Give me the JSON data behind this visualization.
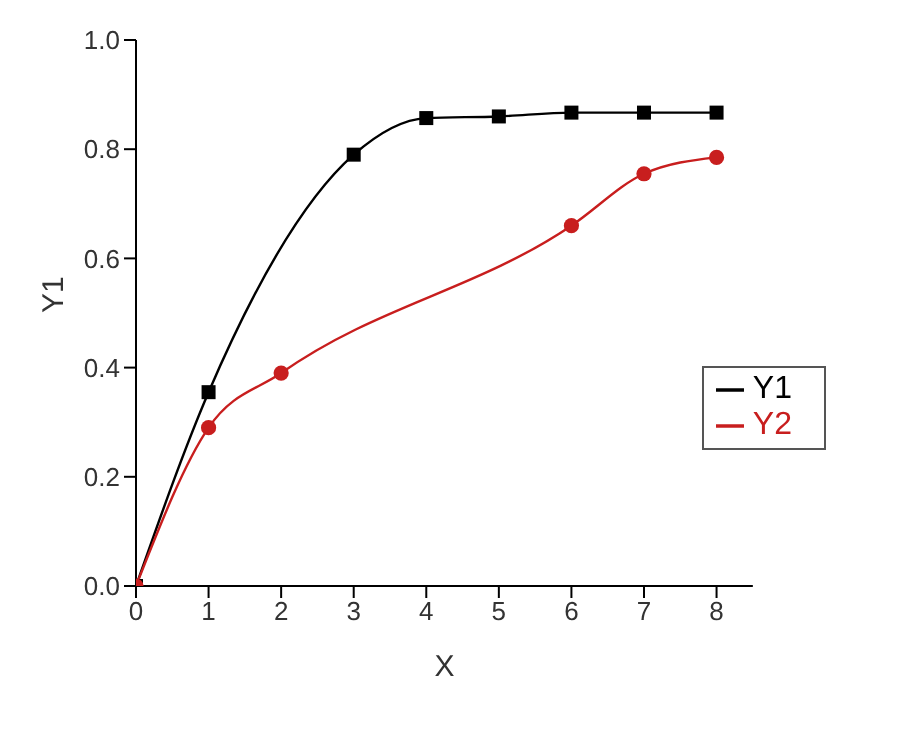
{
  "chart_data": {
    "type": "line",
    "xlabel": "X",
    "ylabel": "Y1",
    "x": [
      0,
      1,
      2,
      3,
      4,
      5,
      6,
      7,
      8
    ],
    "series": [
      {
        "name": "Y1",
        "color": "#000000",
        "marker": "square",
        "values": [
          0,
          0.355,
          null,
          0.79,
          0.857,
          0.86,
          0.867,
          0.867,
          0.867
        ]
      },
      {
        "name": "Y2",
        "color": "#c81e1e",
        "marker": "circle",
        "values": [
          0,
          0.29,
          0.39,
          null,
          null,
          null,
          0.66,
          0.755,
          0.785
        ]
      }
    ],
    "xlim": [
      0,
      8.5
    ],
    "xticks": [
      0,
      1,
      2,
      3,
      4,
      5,
      6,
      7,
      8
    ],
    "ylim": [
      0,
      1.0
    ],
    "yticks": [
      {
        "value": 0,
        "label": "0.0"
      },
      {
        "value": 0.2,
        "label": "0.2"
      },
      {
        "value": 0.4,
        "label": "0.4"
      },
      {
        "value": 0.6,
        "label": "0.6"
      },
      {
        "value": 0.8,
        "label": "0.8"
      },
      {
        "value": 1.0,
        "label": "1.0"
      }
    ],
    "grid": false,
    "legend": "right"
  }
}
